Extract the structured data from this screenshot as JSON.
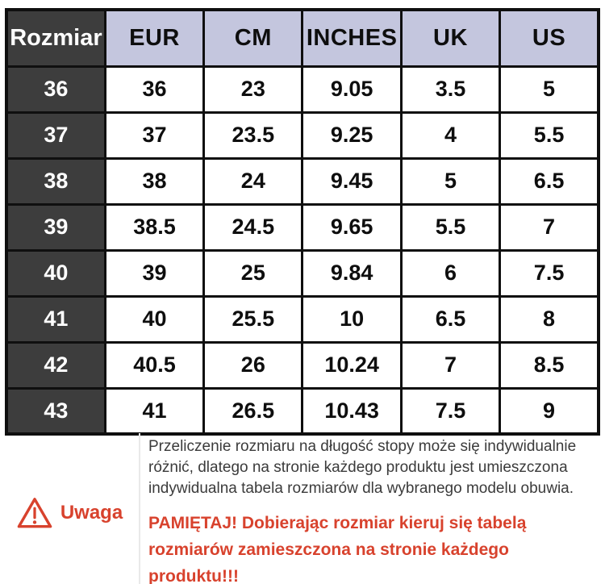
{
  "chart_data": {
    "type": "table",
    "title": "Rozmiar (shoe size conversion)",
    "columns": [
      "Rozmiar",
      "EUR",
      "CM",
      "INCHES",
      "UK",
      "US"
    ],
    "rows": [
      [
        "36",
        "36",
        "23",
        "9.05",
        "3.5",
        "5"
      ],
      [
        "37",
        "37",
        "23.5",
        "9.25",
        "4",
        "5.5"
      ],
      [
        "38",
        "38",
        "24",
        "9.45",
        "5",
        "6.5"
      ],
      [
        "39",
        "38.5",
        "24.5",
        "9.65",
        "5.5",
        "7"
      ],
      [
        "40",
        "39",
        "25",
        "9.84",
        "6",
        "7.5"
      ],
      [
        "41",
        "40",
        "25.5",
        "10",
        "6.5",
        "8"
      ],
      [
        "42",
        "40.5",
        "26",
        "10.24",
        "7",
        "8.5"
      ],
      [
        "43",
        "41",
        "26.5",
        "10.43",
        "7.5",
        "9"
      ]
    ]
  },
  "note": {
    "warning_label": "Uwaga",
    "warning_icon": "warning-triangle-icon",
    "body": "Przeliczenie rozmiaru na długość stopy może się indywidualnie różnić, dlatego na stronie każdego produktu jest umieszczona indywidualna tabela rozmiarów dla wybranego modelu obuwia.",
    "reminder": "PAMIĘTAJ! Dobierając rozmiar kieruj się tabelą rozmiarów zamieszczona na stronie każdego produktu!!!"
  },
  "colors": {
    "header_dark": "#3d3d3d",
    "header_lavender": "#c4c6de",
    "border": "#0f0f0f",
    "warning_red": "#d8422d",
    "body_text": "#3b3b3b"
  }
}
